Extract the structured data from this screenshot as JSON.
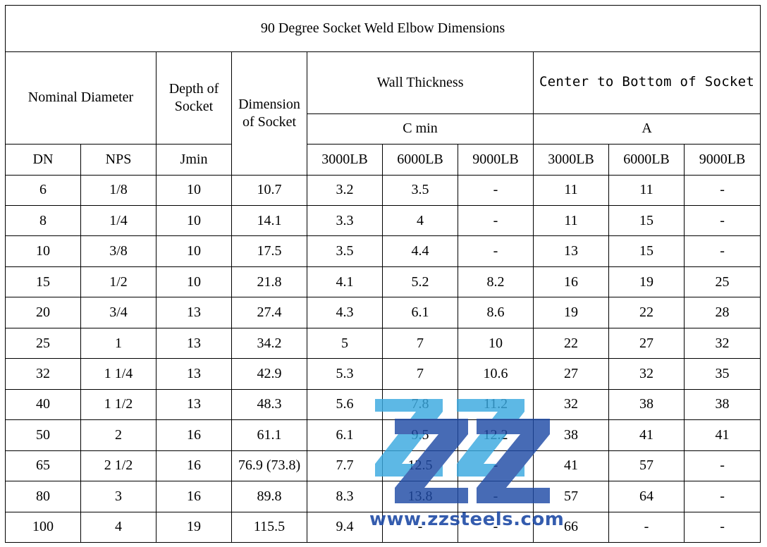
{
  "title": "90 Degree Socket Weld Elbow Dimensions",
  "headers": {
    "nominal_diameter": "Nominal Diameter",
    "depth_of_socket": "Depth of Socket",
    "dimension_of_socket": "Dimension of Socket",
    "wall_thickness": "Wall Thickness",
    "wall_thickness_sub": "C min",
    "center_to_bottom": "Center to Bottom of Socket",
    "center_to_bottom_sub": "A",
    "dn": "DN",
    "nps": "NPS",
    "jmin": "Jmin",
    "wt_3000": "3000LB",
    "wt_6000": "6000LB",
    "wt_9000": "9000LB",
    "a_3000": "3000LB",
    "a_6000": "6000LB",
    "a_9000": "9000LB"
  },
  "rows": [
    [
      "6",
      "1/8",
      "10",
      "10.7",
      "3.2",
      "3.5",
      "-",
      "11",
      "11",
      "-"
    ],
    [
      "8",
      "1/4",
      "10",
      "14.1",
      "3.3",
      "4",
      "-",
      "11",
      "15",
      "-"
    ],
    [
      "10",
      "3/8",
      "10",
      "17.5",
      "3.5",
      "4.4",
      "-",
      "13",
      "15",
      "-"
    ],
    [
      "15",
      "1/2",
      "10",
      "21.8",
      "4.1",
      "5.2",
      "8.2",
      "16",
      "19",
      "25"
    ],
    [
      "20",
      "3/4",
      "13",
      "27.4",
      "4.3",
      "6.1",
      "8.6",
      "19",
      "22",
      "28"
    ],
    [
      "25",
      "1",
      "13",
      "34.2",
      "5",
      "7",
      "10",
      "22",
      "27",
      "32"
    ],
    [
      "32",
      "1 1/4",
      "13",
      "42.9",
      "5.3",
      "7",
      "10.6",
      "27",
      "32",
      "35"
    ],
    [
      "40",
      "1 1/2",
      "13",
      "48.3",
      "5.6",
      "7.8",
      "11.2",
      "32",
      "38",
      "38"
    ],
    [
      "50",
      "2",
      "16",
      "61.1",
      "6.1",
      "9.5",
      "12.2",
      "38",
      "41",
      "41"
    ],
    [
      "65",
      "2 1/2",
      "16",
      "76.9 (73.8)",
      "7.7",
      "12.5",
      "-",
      "41",
      "57",
      "-"
    ],
    [
      "80",
      "3",
      "16",
      "89.8",
      "8.3",
      "13.8",
      "-",
      "57",
      "64",
      "-"
    ],
    [
      "100",
      "4",
      "19",
      "115.5",
      "9.4",
      "-",
      "-",
      "66",
      "-",
      "-"
    ]
  ],
  "watermark": {
    "text": "www.zzsteels.com",
    "logo_color_light": "#3aa9e0",
    "logo_color_dark": "#1f4ba6"
  }
}
